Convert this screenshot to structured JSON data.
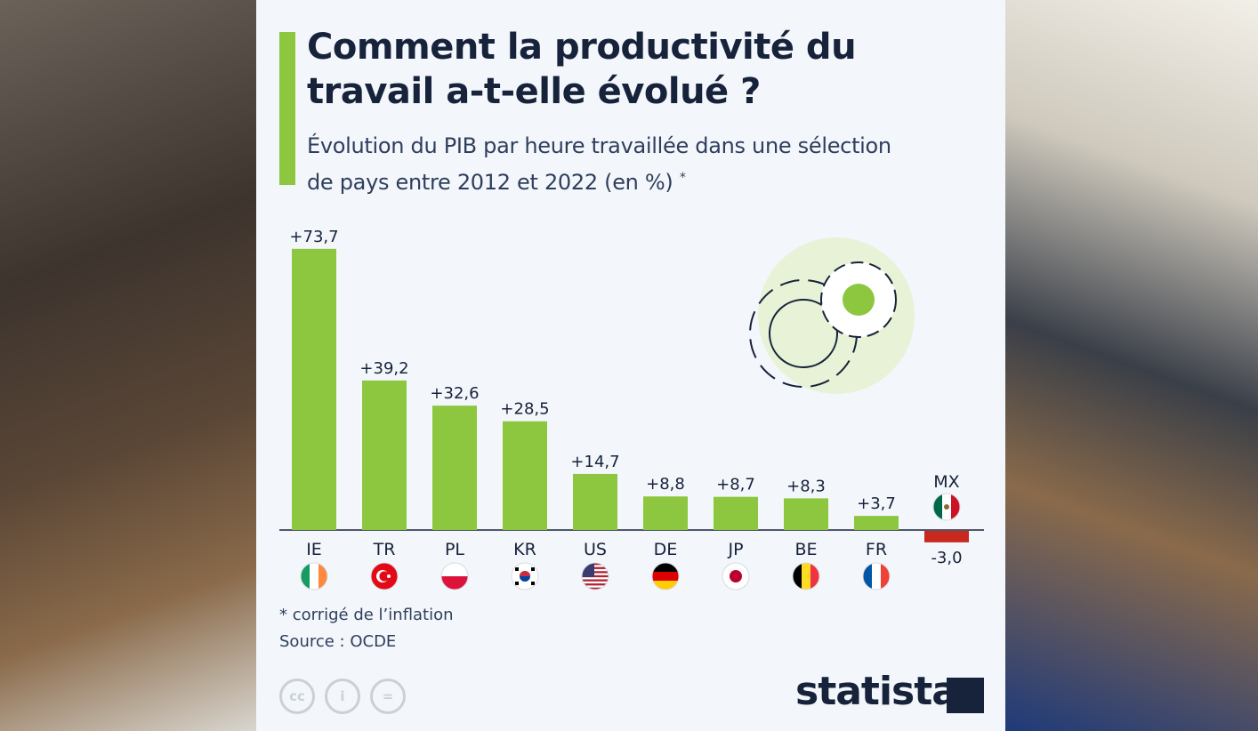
{
  "title": "Comment la productivité du travail a-t-elle évolué ?",
  "title_line1": "Comment la productivité du",
  "title_line2": "travail a-t-elle évolué ?",
  "subtitle_line1": "Évolution du PIB par heure travaillée dans une sélection",
  "subtitle_line2": "de pays entre 2012 et 2022 (en %)",
  "subtitle_marker": "*",
  "footnote": "* corrigé de l’inflation",
  "source": "Source : OCDE",
  "brand": "statista",
  "license_icons": [
    "cc-icon",
    "attribution-icon",
    "no-derivatives-icon"
  ],
  "colors": {
    "positive": "#8dc63f",
    "negative": "#c8291e",
    "text": "#17223b",
    "accent": "#8dc63f"
  },
  "chart_data": {
    "type": "bar",
    "title": "Comment la productivité du travail a-t-elle évolué ?",
    "categories": [
      "IE",
      "TR",
      "PL",
      "KR",
      "US",
      "DE",
      "JP",
      "BE",
      "FR",
      "MX"
    ],
    "values": [
      73.7,
      39.2,
      32.6,
      28.5,
      14.7,
      8.8,
      8.7,
      8.3,
      3.7,
      -3.0
    ],
    "labels": [
      "+73,7",
      "+39,2",
      "+32,6",
      "+28,5",
      "+14,7",
      "+8,8",
      "+8,7",
      "+8,3",
      "+3,7",
      "-3,0"
    ],
    "flags": [
      "ireland",
      "turkey",
      "poland",
      "south-korea",
      "usa",
      "germany",
      "japan",
      "belgium",
      "france",
      "mexico"
    ],
    "xlabel": "",
    "ylabel": "",
    "grid": false,
    "legend": "none"
  }
}
